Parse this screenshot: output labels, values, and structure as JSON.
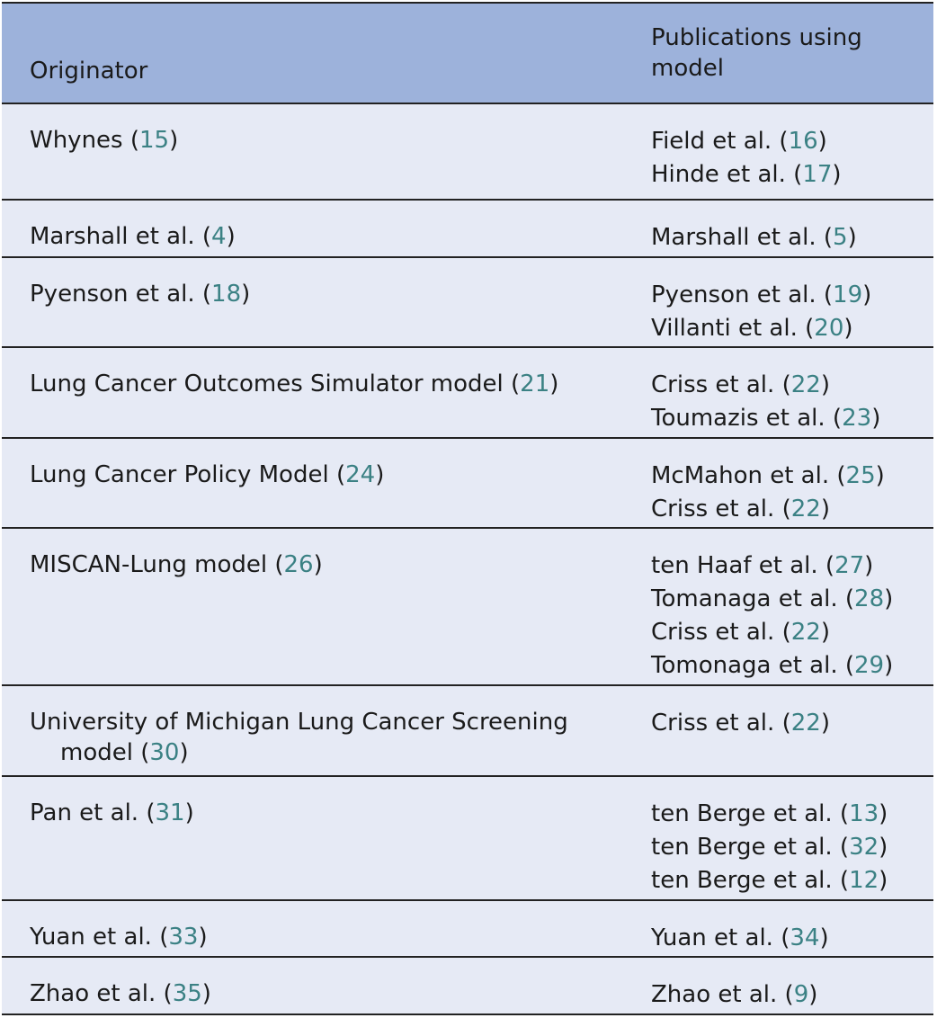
{
  "header": {
    "originator": "Originator",
    "publications": "Publications using model"
  },
  "rows": [
    {
      "originator": {
        "name": "Whynes",
        "ref": "15"
      },
      "publications": [
        {
          "name": "Field et al.",
          "ref": "16"
        },
        {
          "name": "Hinde et al.",
          "ref": "17"
        }
      ]
    },
    {
      "originator": {
        "name": "Marshall et al.",
        "ref": "4"
      },
      "publications": [
        {
          "name": "Marshall et al.",
          "ref": "5"
        }
      ]
    },
    {
      "originator": {
        "name": "Pyenson et al.",
        "ref": "18"
      },
      "publications": [
        {
          "name": "Pyenson et al.",
          "ref": "19"
        },
        {
          "name": "Villanti et al.",
          "ref": "20"
        }
      ]
    },
    {
      "originator": {
        "name": "Lung Cancer Outcomes Simulator model",
        "ref": "21"
      },
      "publications": [
        {
          "name": "Criss et al.",
          "ref": "22"
        },
        {
          "name": "Toumazis et al.",
          "ref": "23"
        }
      ]
    },
    {
      "originator": {
        "name": "Lung Cancer Policy Model",
        "ref": "24"
      },
      "publications": [
        {
          "name": "McMahon et al.",
          "ref": "25"
        },
        {
          "name": "Criss et al.",
          "ref": "22"
        }
      ]
    },
    {
      "originator": {
        "name": "MISCAN-Lung model",
        "ref": "26"
      },
      "publications": [
        {
          "name": "ten Haaf et al.",
          "ref": "27"
        },
        {
          "name": "Tomanaga et al.",
          "ref": "28"
        },
        {
          "name": "Criss et al.",
          "ref": "22"
        },
        {
          "name": "Tomonaga et al.",
          "ref": "29"
        }
      ]
    },
    {
      "originator": {
        "name": "University of Michigan Lung Cancer Screening",
        "continuation": "model",
        "ref": "30"
      },
      "publications": [
        {
          "name": "Criss et al.",
          "ref": "22"
        }
      ]
    },
    {
      "originator": {
        "name": "Pan et al.",
        "ref": "31"
      },
      "publications": [
        {
          "name": "ten Berge et al.",
          "ref": "13"
        },
        {
          "name": "ten Berge et al.",
          "ref": "32"
        },
        {
          "name": "ten Berge et al.",
          "ref": "12"
        }
      ]
    },
    {
      "originator": {
        "name": "Yuan et al.",
        "ref": "33"
      },
      "publications": [
        {
          "name": "Yuan et al.",
          "ref": "34"
        }
      ]
    },
    {
      "originator": {
        "name": "Zhao et al.",
        "ref": "35"
      },
      "publications": [
        {
          "name": "Zhao et al.",
          "ref": "9"
        }
      ]
    }
  ]
}
